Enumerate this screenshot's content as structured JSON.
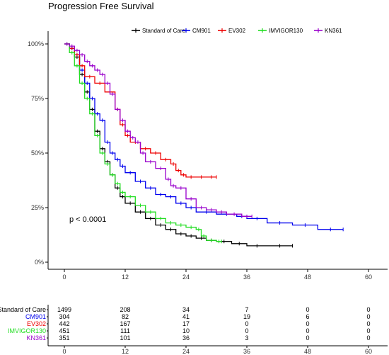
{
  "chart_data": {
    "type": "line",
    "title": "Progression Free Survival",
    "xlabel": "",
    "ylabel": "",
    "xlim": [
      0,
      60
    ],
    "ylim": [
      0,
      100
    ],
    "x_ticks": [
      "0",
      "12",
      "24",
      "36",
      "48",
      "60"
    ],
    "y_ticks": [
      "0%",
      "25%",
      "50%",
      "75%",
      "100%"
    ],
    "annotation": "p < 0.0001",
    "legend_position": "top",
    "series": [
      {
        "name": "Standard of Care",
        "color": "#000000",
        "points": [
          [
            0,
            100
          ],
          [
            1,
            98
          ],
          [
            2,
            94
          ],
          [
            3,
            86
          ],
          [
            4,
            78
          ],
          [
            5,
            70
          ],
          [
            6,
            60
          ],
          [
            7,
            52
          ],
          [
            8,
            46
          ],
          [
            9,
            40
          ],
          [
            10,
            34
          ],
          [
            11,
            30
          ],
          [
            12,
            27
          ],
          [
            14,
            23
          ],
          [
            16,
            20
          ],
          [
            18,
            17
          ],
          [
            20,
            15
          ],
          [
            22,
            13
          ],
          [
            24,
            12
          ],
          [
            26,
            11
          ],
          [
            28,
            10
          ],
          [
            30,
            9.5
          ],
          [
            33,
            8.5
          ],
          [
            36,
            7.5
          ],
          [
            40,
            7.5
          ],
          [
            45,
            7.5
          ]
        ]
      },
      {
        "name": "CM901",
        "color": "#0000ee",
        "points": [
          [
            0,
            100
          ],
          [
            1,
            98
          ],
          [
            2,
            95
          ],
          [
            3,
            88
          ],
          [
            4,
            82
          ],
          [
            5,
            75
          ],
          [
            6,
            68
          ],
          [
            7,
            65
          ],
          [
            8,
            55
          ],
          [
            9,
            50
          ],
          [
            10,
            47
          ],
          [
            11,
            44
          ],
          [
            12,
            41
          ],
          [
            14,
            37
          ],
          [
            16,
            34
          ],
          [
            18,
            31
          ],
          [
            20,
            30
          ],
          [
            22,
            27
          ],
          [
            24,
            25
          ],
          [
            26,
            23
          ],
          [
            30,
            22
          ],
          [
            34,
            21
          ],
          [
            36,
            20
          ],
          [
            40,
            18
          ],
          [
            45,
            17
          ],
          [
            50,
            15
          ],
          [
            55,
            15
          ]
        ]
      },
      {
        "name": "EV302",
        "color": "#ee0000",
        "points": [
          [
            0,
            100
          ],
          [
            1,
            98
          ],
          [
            2,
            95
          ],
          [
            3,
            90
          ],
          [
            4,
            85
          ],
          [
            6,
            82
          ],
          [
            8,
            78
          ],
          [
            10,
            70
          ],
          [
            11,
            63
          ],
          [
            12,
            58
          ],
          [
            13,
            55
          ],
          [
            15,
            52
          ],
          [
            17,
            50
          ],
          [
            19,
            47
          ],
          [
            21,
            45
          ],
          [
            22,
            42
          ],
          [
            23,
            40
          ],
          [
            24,
            39
          ],
          [
            26,
            39
          ],
          [
            28,
            39
          ],
          [
            30,
            39
          ]
        ]
      },
      {
        "name": "IMVIGOR130",
        "color": "#22dd22",
        "points": [
          [
            0,
            100
          ],
          [
            1,
            96
          ],
          [
            2,
            90
          ],
          [
            3,
            82
          ],
          [
            4,
            75
          ],
          [
            5,
            68
          ],
          [
            6,
            58
          ],
          [
            7,
            50
          ],
          [
            8,
            45
          ],
          [
            9,
            40
          ],
          [
            10,
            36
          ],
          [
            11,
            32
          ],
          [
            12,
            30
          ],
          [
            14,
            26
          ],
          [
            16,
            23
          ],
          [
            18,
            20
          ],
          [
            20,
            18
          ],
          [
            22,
            17
          ],
          [
            24,
            16
          ],
          [
            26,
            15
          ],
          [
            27,
            12
          ],
          [
            28,
            10
          ],
          [
            30,
            9.5
          ],
          [
            31,
            9.5
          ]
        ]
      },
      {
        "name": "KN361",
        "color": "#9900cc",
        "points": [
          [
            0,
            100
          ],
          [
            1,
            99
          ],
          [
            2,
            97
          ],
          [
            3,
            95
          ],
          [
            4,
            92
          ],
          [
            5,
            90
          ],
          [
            6,
            88
          ],
          [
            7,
            86
          ],
          [
            8,
            82
          ],
          [
            9,
            77
          ],
          [
            10,
            70
          ],
          [
            11,
            65
          ],
          [
            12,
            60
          ],
          [
            13,
            57
          ],
          [
            14,
            55
          ],
          [
            15,
            50
          ],
          [
            16,
            46
          ],
          [
            18,
            43
          ],
          [
            20,
            38
          ],
          [
            21,
            35
          ],
          [
            22,
            34
          ],
          [
            24,
            29
          ],
          [
            26,
            25
          ],
          [
            28,
            24
          ],
          [
            30,
            23
          ],
          [
            32,
            22
          ],
          [
            35,
            21
          ],
          [
            37,
            21
          ]
        ]
      }
    ]
  },
  "risk_table": {
    "time_labels": [
      "0",
      "12",
      "24",
      "36",
      "48",
      "60"
    ],
    "rows": [
      {
        "label": "Standard of Care",
        "color": "#000000",
        "values": [
          "1499",
          "208",
          "34",
          "7",
          "0",
          "0"
        ]
      },
      {
        "label": "CM901",
        "color": "#0000ee",
        "values": [
          "304",
          "82",
          "41",
          "19",
          "6",
          "0"
        ]
      },
      {
        "label": "EV302",
        "color": "#ee0000",
        "values": [
          "442",
          "167",
          "17",
          "0",
          "0",
          "0"
        ]
      },
      {
        "label": "IMVIGOR130",
        "color": "#22dd22",
        "values": [
          "451",
          "111",
          "10",
          "0",
          "0",
          "0"
        ]
      },
      {
        "label": "KN361",
        "color": "#9900cc",
        "values": [
          "351",
          "101",
          "36",
          "3",
          "0",
          "0"
        ]
      }
    ]
  }
}
